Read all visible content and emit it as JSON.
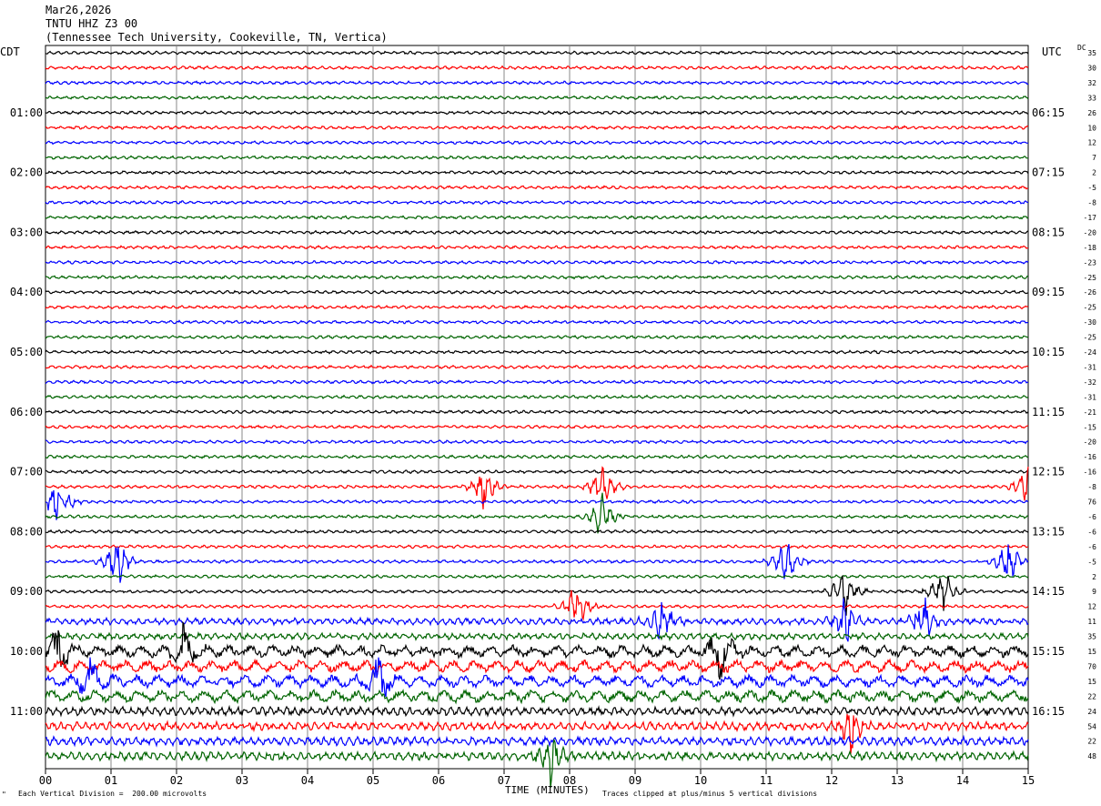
{
  "header": {
    "date": "Mar26,2026",
    "station": "TNTU HHZ Z3 00",
    "location": "(Tennessee Tech University, Cookeville, TN, Vertica)"
  },
  "left_zone": "CDT",
  "right_zone": "UTC",
  "dc_label": "DC",
  "footer": {
    "scale_note": "Each Vertical Division =  200.00 microvolts",
    "xlabel": "TIME (MINUTES)",
    "clip_note": "Traces clipped at plus/minus 5 vertical divisions",
    "corner_mark": "\""
  },
  "colors": {
    "cycle": [
      "#000000",
      "#ff0000",
      "#0000ff",
      "#006400"
    ],
    "grid": "#888888"
  },
  "chart_data": {
    "type": "line",
    "title": "TNTU HHZ Z3 00",
    "xlabel": "TIME (MINUTES)",
    "xlim": [
      0,
      15
    ],
    "x_ticks": [
      "00",
      "01",
      "02",
      "03",
      "04",
      "05",
      "06",
      "07",
      "08",
      "09",
      "10",
      "11",
      "12",
      "13",
      "14",
      "15"
    ],
    "rows": 48,
    "minutes_per_row": 15,
    "left_times": [
      "01:00",
      "02:00",
      "03:00",
      "04:00",
      "05:00",
      "06:00",
      "07:00",
      "08:00",
      "09:00",
      "10:00",
      "11:00"
    ],
    "right_times": [
      "06:15",
      "07:15",
      "08:15",
      "09:15",
      "10:15",
      "11:15",
      "12:15",
      "13:15",
      "14:15",
      "15:15",
      "16:15"
    ],
    "dc_offsets": [
      "35",
      "30",
      "32",
      "33",
      "26",
      "10",
      "12",
      "7",
      "2",
      "-5",
      "-8",
      "-17",
      "-20",
      "-18",
      "-23",
      "-25",
      "-26",
      "-25",
      "-30",
      "-25",
      "-24",
      "-31",
      "-32",
      "-31",
      "-21",
      "-15",
      "-20",
      "-16",
      "-16",
      "-8",
      "76",
      "-6",
      "-6",
      "-6",
      "-5",
      "2",
      "9",
      "12",
      "11",
      "35",
      "15",
      "70",
      "15",
      "22",
      "24",
      "54",
      "22",
      "48"
    ],
    "events": [
      {
        "row": 30,
        "minute": 0.2
      },
      {
        "row": 29,
        "minute": 8.5
      },
      {
        "row": 31,
        "minute": 8.5
      },
      {
        "row": 29,
        "minute": 6.7
      },
      {
        "row": 29,
        "minute": 15.0
      },
      {
        "row": 34,
        "minute": 1.1
      },
      {
        "row": 34,
        "minute": 11.3
      },
      {
        "row": 34,
        "minute": 14.7
      },
      {
        "row": 36,
        "minute": 12.2
      },
      {
        "row": 36,
        "minute": 13.7
      },
      {
        "row": 37,
        "minute": 8.1
      },
      {
        "row": 38,
        "minute": 9.4
      },
      {
        "row": 38,
        "minute": 12.2
      },
      {
        "row": 38,
        "minute": 13.4
      },
      {
        "row": 40,
        "minute": 0.2
      },
      {
        "row": 40,
        "minute": 2.1
      },
      {
        "row": 40,
        "minute": 10.3
      },
      {
        "row": 42,
        "minute": 0.7
      },
      {
        "row": 42,
        "minute": 5.1
      },
      {
        "row": 45,
        "minute": 12.3
      },
      {
        "row": 47,
        "minute": 7.7
      }
    ]
  }
}
